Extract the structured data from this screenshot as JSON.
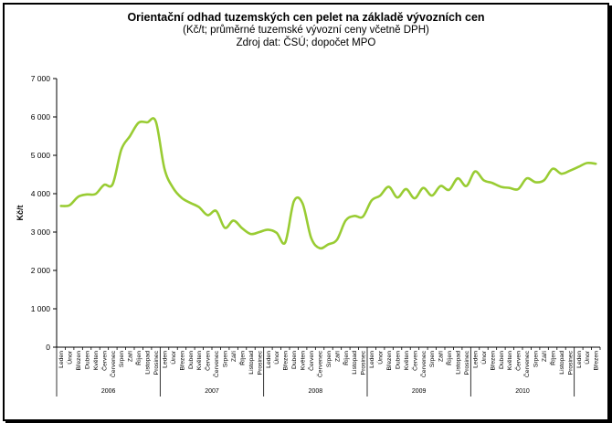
{
  "chart_data": {
    "type": "line",
    "title": "Orientační odhad tuzemských cen pelet na základě vývozních cen",
    "subtitle": "(Kč/t;  průměrné tuzemské vývozní ceny včetně DPH)",
    "source": "Zdroj dat: ČSÚ; dopočet MPO",
    "ylabel": "Kč/t",
    "xlabel": "",
    "ylim": [
      0,
      7000
    ],
    "yticks": [
      "0",
      "1 000",
      "2 000",
      "3 000",
      "4 000",
      "5 000",
      "6 000",
      "7 000"
    ],
    "grid": false,
    "line_color": "#99cc33",
    "years": [
      "2006",
      "2007",
      "2008",
      "2009",
      "2010"
    ],
    "months": [
      "Leden",
      "Únor",
      "Březen",
      "Duben",
      "Květen",
      "Červen",
      "Červenec",
      "Srpen",
      "Září",
      "Říjen",
      "Listopad",
      "Prosinec"
    ],
    "series": [
      {
        "values": [
          3680,
          3700,
          3920,
          3980,
          3990,
          4230,
          4250,
          5150,
          5500,
          5850,
          5860,
          5880,
          4650,
          4150,
          3890,
          3760,
          3650,
          3440,
          3550,
          3110,
          3300,
          3100,
          2950,
          3000,
          3060,
          2980,
          2730,
          3800,
          3750,
          2850,
          2580,
          2680,
          2800,
          3300,
          3420,
          3400,
          3820,
          3950,
          4180,
          3900,
          4120,
          3880,
          4150,
          3950,
          4200,
          4100,
          4400,
          4200,
          4580,
          4350,
          4280,
          4180,
          4150,
          4120,
          4400,
          4300,
          4350,
          4650,
          4520,
          4600,
          4700,
          4800,
          4780
        ]
      }
    ]
  }
}
